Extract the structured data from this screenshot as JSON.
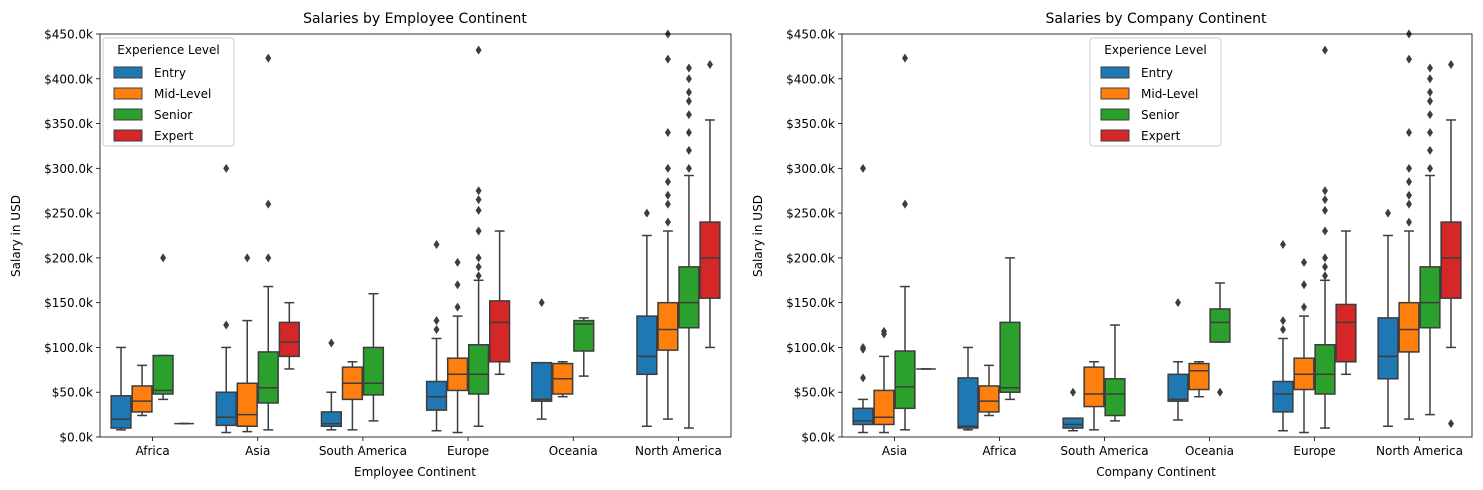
{
  "colors": {
    "entry": "#1f77b4",
    "mid": "#ff7f0e",
    "senior": "#2ca02c",
    "expert": "#d62728",
    "line": "#3d3d3d"
  },
  "chart_data": [
    {
      "type": "box",
      "title": "Salaries by Employee Continent",
      "xlabel": "Employee Continent",
      "ylabel": "Salary in USD",
      "ylim": [
        0,
        450000
      ],
      "yticks": [
        "$0.0k",
        "$50.0k",
        "$100.0k",
        "$150.0k",
        "$200.0k",
        "$250.0k",
        "$300.0k",
        "$350.0k",
        "$400.0k",
        "$450.0k"
      ],
      "legend": {
        "title": "Experience Level",
        "entries": [
          "Entry",
          "Mid-Level",
          "Senior",
          "Expert"
        ],
        "placement": "upper-left"
      },
      "categories": [
        "Africa",
        "Asia",
        "South America",
        "Europe",
        "Oceania",
        "North America"
      ],
      "series": [
        {
          "name": "Entry",
          "boxes": [
            [
              8,
              10,
              20,
              46,
              100,
              []
            ],
            [
              5,
              13,
              22,
              50,
              100,
              [
                125,
                300
              ]
            ],
            [
              8,
              12,
              15,
              28,
              50,
              [
                105
              ]
            ],
            [
              7,
              30,
              45,
              62,
              110,
              [
                120,
                130,
                215
              ]
            ],
            [
              20,
              40,
              42,
              83,
              83,
              [
                150
              ]
            ],
            [
              12,
              70,
              90,
              135,
              225,
              [
                250
              ]
            ]
          ]
        },
        {
          "name": "Mid-Level",
          "boxes": [
            [
              24,
              28,
              40,
              57,
              80,
              []
            ],
            [
              6,
              12,
              25,
              60,
              130,
              [
                200
              ]
            ],
            [
              8,
              42,
              60,
              78,
              84,
              []
            ],
            [
              5,
              52,
              70,
              88,
              135,
              [
                145,
                170,
                195
              ]
            ],
            [
              45,
              48,
              65,
              82,
              84,
              []
            ],
            [
              20,
              97,
              120,
              150,
              230,
              [
                240,
                260,
                270,
                285,
                300,
                340,
                422,
                450
              ]
            ]
          ]
        },
        {
          "name": "Senior",
          "boxes": [
            [
              42,
              48,
              52,
              91,
              91,
              [
                200
              ]
            ],
            [
              8,
              38,
              55,
              95,
              168,
              [
                200,
                260,
                423
              ]
            ],
            [
              18,
              47,
              60,
              100,
              160,
              []
            ],
            [
              12,
              48,
              70,
              103,
              175,
              [
                180,
                190,
                200,
                230,
                253,
                265,
                275,
                432
              ]
            ],
            [
              68,
              96,
              126,
              130,
              133,
              []
            ],
            [
              10,
              122,
              150,
              190,
              292,
              [
                300,
                320,
                340,
                360,
                375,
                385,
                400,
                412
              ]
            ]
          ]
        },
        {
          "name": "Expert",
          "boxes": [
            [
              15,
              15,
              15,
              15,
              15,
              []
            ],
            [
              76,
              90,
              106,
              128,
              150,
              []
            ],
            null,
            [
              70,
              84,
              128,
              152,
              230,
              []
            ],
            null,
            [
              100,
              155,
              200,
              240,
              354,
              [
                416
              ]
            ]
          ]
        }
      ]
    },
    {
      "type": "box",
      "title": "Salaries by Company Continent",
      "xlabel": "Company Continent",
      "ylabel": "Salary in USD",
      "ylim": [
        0,
        450000
      ],
      "yticks": [
        "$0.0k",
        "$50.0k",
        "$100.0k",
        "$150.0k",
        "$200.0k",
        "$250.0k",
        "$300.0k",
        "$350.0k",
        "$400.0k",
        "$450.0k"
      ],
      "legend": {
        "title": "Experience Level",
        "entries": [
          "Entry",
          "Mid-Level",
          "Senior",
          "Expert"
        ],
        "placement": "upper-center"
      },
      "categories": [
        "Asia",
        "Africa",
        "South America",
        "Oceania",
        "Europe",
        "North America"
      ],
      "series": [
        {
          "name": "Entry",
          "boxes": [
            [
              5,
              14,
              18,
              32,
              42,
              [
                66,
                98,
                100,
                300
              ]
            ],
            [
              8,
              10,
              12,
              66,
              100,
              []
            ],
            [
              7,
              10,
              14,
              21,
              21,
              [
                50
              ]
            ],
            [
              19,
              40,
              42,
              70,
              84,
              [
                150
              ]
            ],
            [
              7,
              28,
              48,
              62,
              110,
              [
                120,
                130,
                215
              ]
            ],
            [
              12,
              65,
              90,
              133,
              225,
              [
                250
              ]
            ]
          ]
        },
        {
          "name": "Mid-Level",
          "boxes": [
            [
              5,
              14,
              22,
              52,
              90,
              [
                115,
                118
              ]
            ],
            [
              24,
              28,
              40,
              57,
              80,
              []
            ],
            [
              8,
              34,
              48,
              78,
              84,
              []
            ],
            [
              45,
              53,
              74,
              82,
              84,
              []
            ],
            [
              5,
              53,
              70,
              88,
              135,
              [
                145,
                170,
                195
              ]
            ],
            [
              20,
              95,
              120,
              150,
              230,
              [
                240,
                260,
                270,
                285,
                300,
                340,
                422,
                450
              ]
            ]
          ]
        },
        {
          "name": "Senior",
          "boxes": [
            [
              8,
              32,
              56,
              96,
              168,
              [
                260,
                423
              ]
            ],
            [
              42,
              50,
              55,
              128,
              200,
              []
            ],
            [
              18,
              24,
              48,
              65,
              125,
              []
            ],
            [
              106,
              106,
              128,
              143,
              172,
              [
                50
              ]
            ],
            [
              10,
              48,
              70,
              103,
              175,
              [
                180,
                190,
                200,
                230,
                253,
                265,
                275,
                432
              ]
            ],
            [
              25,
              122,
              150,
              190,
              292,
              [
                300,
                320,
                340,
                360,
                375,
                385,
                400,
                412
              ]
            ]
          ]
        },
        {
          "name": "Expert",
          "boxes": [
            [
              76,
              76,
              76,
              76,
              76,
              []
            ],
            null,
            null,
            null,
            [
              70,
              84,
              128,
              148,
              230,
              []
            ],
            [
              100,
              155,
              200,
              240,
              354,
              [
                15,
                416
              ]
            ]
          ]
        }
      ]
    }
  ]
}
